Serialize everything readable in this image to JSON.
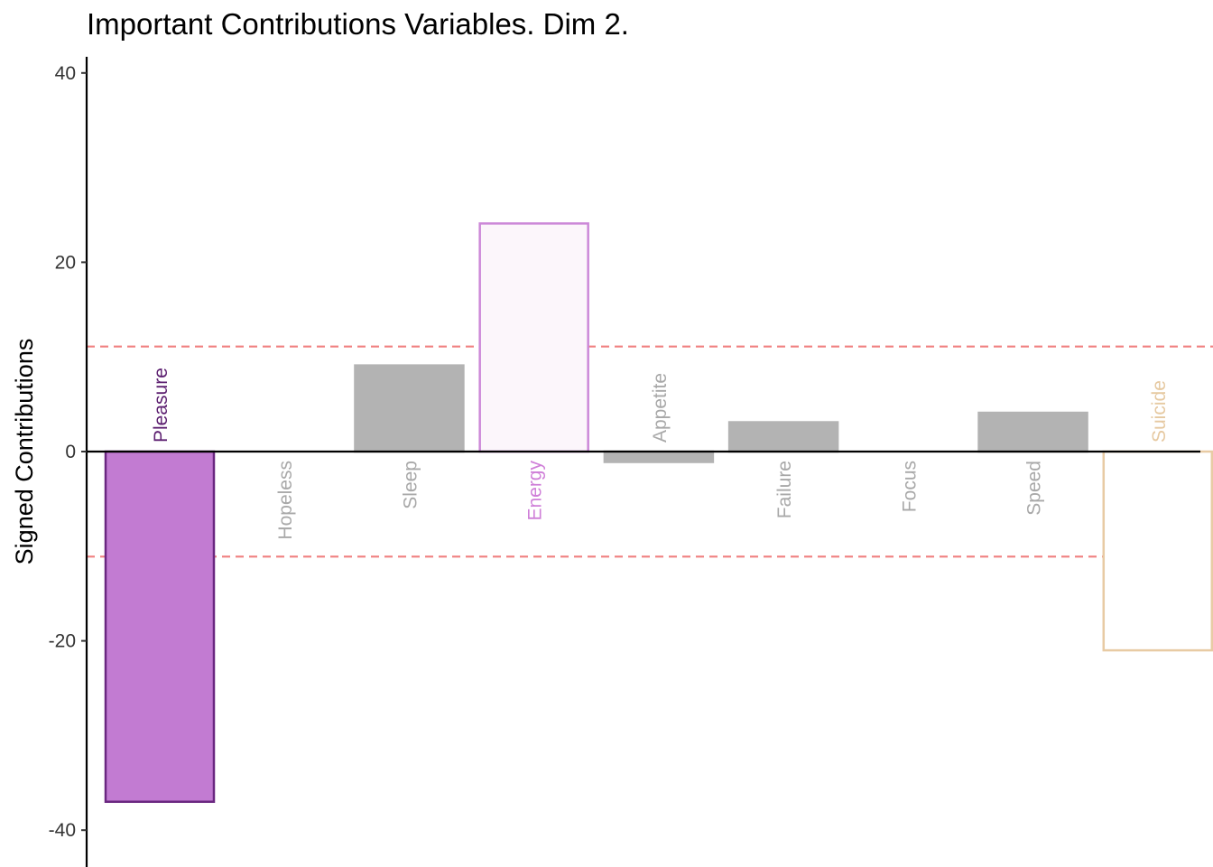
{
  "chart_data": {
    "type": "bar",
    "title": "Important Contributions Variables. Dim 2.",
    "xlabel": "",
    "ylabel": "Signed Contributions",
    "ylim": [
      -42,
      42
    ],
    "yticks": [
      -40,
      -20,
      0,
      20,
      40
    ],
    "threshold_lines": [
      11.1,
      -11.1
    ],
    "threshold_color": "#f08080",
    "grid": false,
    "categories": [
      "Pleasure",
      "Hopeless",
      "Sleep",
      "Energy",
      "Appetite",
      "Failure",
      "Focus",
      "Speed",
      "Suicide"
    ],
    "values": [
      -37.0,
      0.0,
      9.1,
      24.1,
      -1.1,
      3.1,
      0.0,
      4.1,
      -21.0
    ],
    "fills": [
      "#c27bd2",
      "#b3b3b3",
      "#b3b3b3",
      "#fcf6fb",
      "#b3b3b3",
      "#b3b3b3",
      "#b3b3b3",
      "#b3b3b3",
      "#ffffff"
    ],
    "strokes": [
      "#6a2780",
      "#b3b3b3",
      "#b3b3b3",
      "#cc88d8",
      "#b3b3b3",
      "#b3b3b3",
      "#b3b3b3",
      "#b3b3b3",
      "#e8cba4"
    ],
    "label_colors": [
      "#5c1f70",
      "#a8a8a8",
      "#a8a8a8",
      "#cf7fd8",
      "#a8a8a8",
      "#a8a8a8",
      "#a8a8a8",
      "#a8a8a8",
      "#e6c9a1"
    ]
  }
}
